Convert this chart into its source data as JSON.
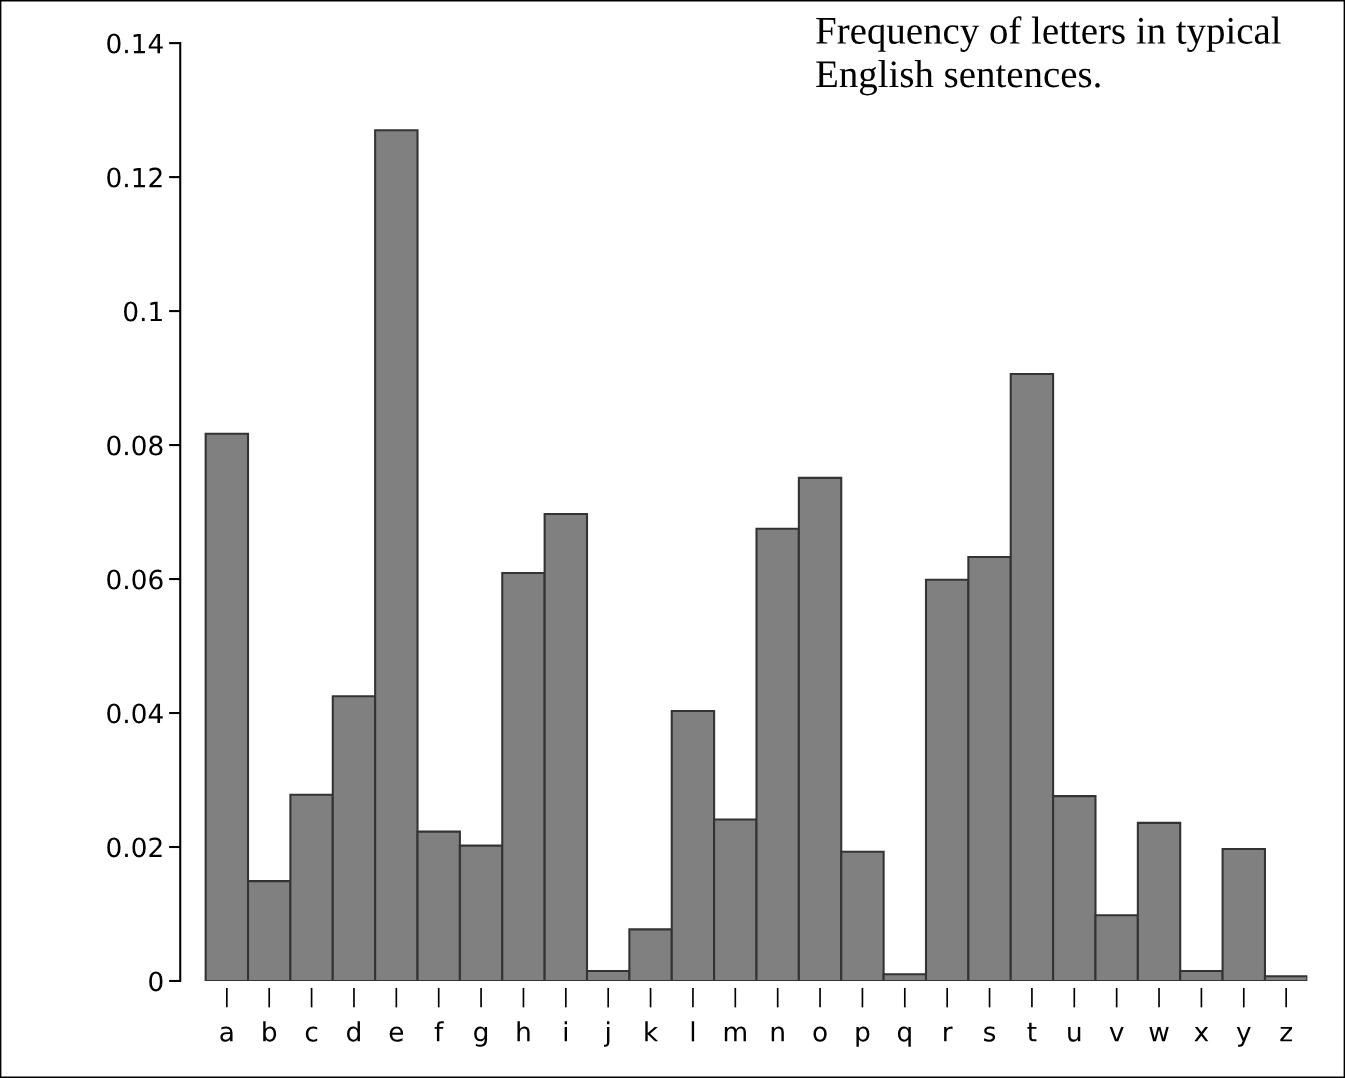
{
  "chart_data": {
    "type": "bar",
    "title": "Frequency of letters in typical English sentences.",
    "categories": [
      "a",
      "b",
      "c",
      "d",
      "e",
      "f",
      "g",
      "h",
      "i",
      "j",
      "k",
      "l",
      "m",
      "n",
      "o",
      "p",
      "q",
      "r",
      "s",
      "t",
      "u",
      "v",
      "w",
      "x",
      "y",
      "z"
    ],
    "values": [
      0.0817,
      0.0149,
      0.0278,
      0.0425,
      0.127,
      0.0223,
      0.0202,
      0.0609,
      0.0697,
      0.0015,
      0.0077,
      0.0403,
      0.0241,
      0.0675,
      0.0751,
      0.0193,
      0.001,
      0.0599,
      0.0633,
      0.0906,
      0.0276,
      0.0098,
      0.0236,
      0.0015,
      0.0197,
      0.0007
    ],
    "color": "#808080",
    "ylim": [
      0,
      0.14
    ],
    "yticks": [
      {
        "value": 0,
        "label": "0"
      },
      0.02,
      0.04,
      0.06,
      0.08,
      0.1,
      0.12,
      0.14
    ],
    "grid": false
  }
}
